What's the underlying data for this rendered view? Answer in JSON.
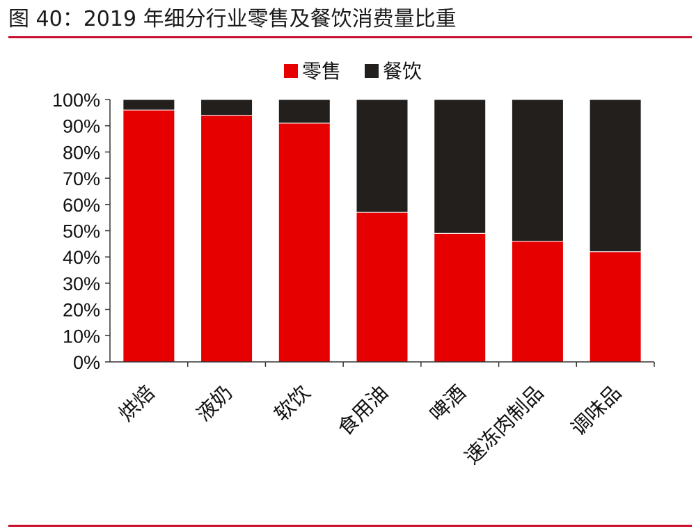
{
  "figure": {
    "title": "图 40：2019 年细分行业零售及餐饮消费量比重"
  },
  "colors": {
    "accent_rule": "#c8102e",
    "retail": "#e60000",
    "catering": "#231f1c"
  },
  "chart_data": {
    "type": "bar",
    "stacked": true,
    "normalized": true,
    "categories": [
      "烘焙",
      "液奶",
      "软饮",
      "食用油",
      "啤酒",
      "速冻肉制品",
      "调味品"
    ],
    "series": [
      {
        "name": "零售",
        "values": [
          96,
          94,
          91,
          57,
          49,
          46,
          42
        ]
      },
      {
        "name": "餐饮",
        "values": [
          4,
          6,
          9,
          43,
          51,
          54,
          58
        ]
      }
    ],
    "ylim": [
      0,
      100
    ],
    "y_ticks": [
      "0%",
      "10%",
      "20%",
      "30%",
      "40%",
      "50%",
      "60%",
      "70%",
      "80%",
      "90%",
      "100%"
    ],
    "xlabel": "",
    "ylabel": "",
    "legend_position": "top-center",
    "grid": false
  }
}
